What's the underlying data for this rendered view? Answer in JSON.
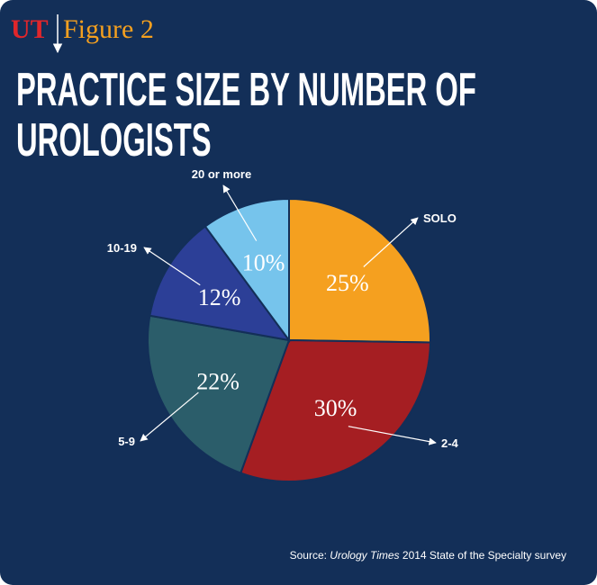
{
  "chart_data": {
    "type": "pie",
    "logo": "UT",
    "figure_label": "Figure 2",
    "title": "PRACTICE SIZE BY NUMBER OF UROLOGISTS",
    "categories": [
      "SOLO",
      "2-4",
      "5-9",
      "10-19",
      "20 or more"
    ],
    "values": [
      25,
      30,
      22,
      12,
      10
    ],
    "value_labels": [
      "25%",
      "30%",
      "22%",
      "12%",
      "10%"
    ],
    "colors": [
      "#f5a01f",
      "#a51e22",
      "#2b5d6a",
      "#2c3f97",
      "#76c4ec"
    ],
    "source": {
      "prefix": "Source:",
      "publication": "Urology Times",
      "rest": "2014 State of the Specialty survey"
    }
  }
}
